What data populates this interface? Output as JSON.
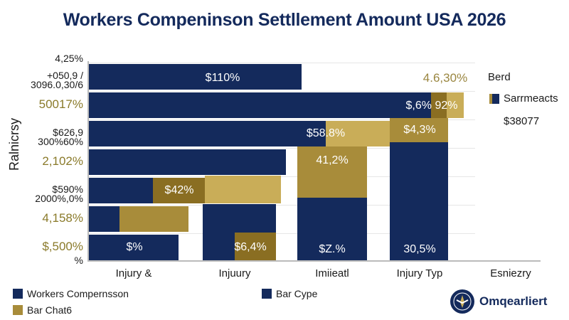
{
  "chart_data": {
    "type": "bar",
    "title": "Workers Compeninson Settllement Amount USA 2026",
    "ylabel": "Ralnicrsy",
    "ytick_labels": [
      {
        "text": "4,25%",
        "accent": false
      },
      {
        "text": "+050,9 /\n3096.0,30/6",
        "accent": false
      },
      {
        "text": "50017%",
        "accent": true
      },
      {
        "text": "$626,9\n300%60%",
        "accent": false
      },
      {
        "text": "2,102%",
        "accent": true
      },
      {
        "text": "$590%\n2000%,0%",
        "accent": false
      },
      {
        "text": "4,158%",
        "accent": true
      },
      {
        "text": "$,500%",
        "accent": true
      },
      {
        "text": "%",
        "accent": false
      }
    ],
    "xtick_labels": [
      "Injury &",
      "Injuury",
      "Imiieatl",
      "Injury Typ",
      "Esniezry"
    ],
    "data_labels": [
      "$110%",
      "$,6% 92%",
      "$58.8%",
      "$4,3%",
      "41,2%",
      "$42%",
      "$%",
      "$6,4%",
      "$Z.%",
      "30,5%"
    ],
    "annotation": "4.6,30%",
    "legend_right": {
      "title": "Berd",
      "item": "Sarrmeacts",
      "note": "$38077"
    },
    "legend_bottom": [
      {
        "name": "Workers Compernsson",
        "color": "#142a5c"
      },
      {
        "name": "Bar Chat6",
        "color": "#a88c3a"
      },
      {
        "name": "Bar Cype",
        "color": "#142a5c"
      }
    ],
    "colors": {
      "navy": "#142a5c",
      "gold": "#a88c3a",
      "gold_light": "#c9ad58",
      "gold_dark": "#8a6e22"
    },
    "grid": true
  },
  "brand": {
    "name": "Omqearliert"
  }
}
